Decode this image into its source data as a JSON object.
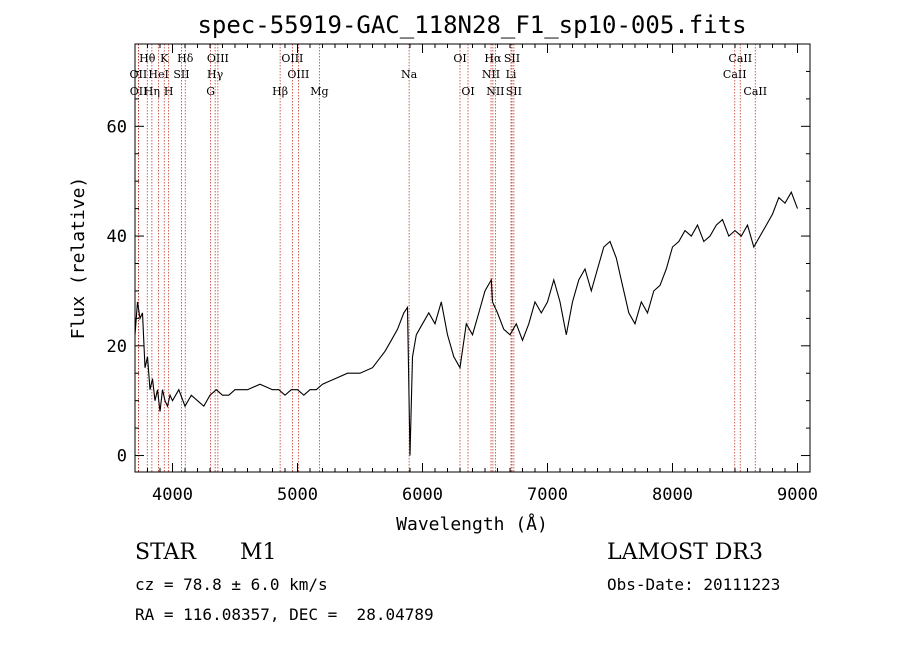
{
  "chart_data": {
    "type": "line",
    "title": "spec-55919-GAC_118N28_F1_sp10-005.fits",
    "xlabel": "Wavelength (Å)",
    "ylabel": "Flux (relative)",
    "xlim": [
      3700,
      9100
    ],
    "ylim": [
      -3,
      75
    ],
    "x_ticks": [
      4000,
      5000,
      6000,
      7000,
      8000,
      9000
    ],
    "y_ticks": [
      0,
      20,
      40,
      60
    ],
    "grid": false,
    "series": [
      {
        "name": "Flux",
        "x": [
          3700,
          3720,
          3740,
          3760,
          3780,
          3800,
          3820,
          3840,
          3860,
          3880,
          3900,
          3920,
          3940,
          3960,
          3980,
          4000,
          4050,
          4100,
          4150,
          4200,
          4250,
          4300,
          4350,
          4400,
          4450,
          4500,
          4600,
          4700,
          4800,
          4850,
          4900,
          4950,
          5000,
          5050,
          5100,
          5150,
          5200,
          5300,
          5400,
          5500,
          5600,
          5700,
          5750,
          5800,
          5850,
          5880,
          5900,
          5920,
          5950,
          6000,
          6050,
          6100,
          6150,
          6200,
          6250,
          6300,
          6350,
          6400,
          6450,
          6500,
          6550,
          6560,
          6580,
          6600,
          6650,
          6700,
          6750,
          6800,
          6850,
          6900,
          6950,
          7000,
          7050,
          7100,
          7150,
          7200,
          7250,
          7300,
          7350,
          7400,
          7450,
          7500,
          7550,
          7600,
          7650,
          7700,
          7750,
          7800,
          7850,
          7900,
          7950,
          8000,
          8050,
          8100,
          8150,
          8200,
          8250,
          8300,
          8350,
          8400,
          8450,
          8500,
          8550,
          8600,
          8650,
          8700,
          8750,
          8800,
          8850,
          8900,
          8950,
          9000
        ],
        "values": [
          22,
          28,
          25,
          26,
          16,
          18,
          12,
          14,
          10,
          12,
          8,
          12,
          10,
          9,
          11,
          10,
          12,
          9,
          11,
          10,
          9,
          11,
          12,
          11,
          11,
          12,
          12,
          13,
          12,
          12,
          11,
          12,
          12,
          11,
          12,
          12,
          13,
          14,
          15,
          15,
          16,
          19,
          21,
          23,
          26,
          27,
          0,
          18,
          22,
          24,
          26,
          24,
          28,
          22,
          18,
          16,
          24,
          22,
          26,
          30,
          32,
          28,
          27,
          26,
          23,
          22,
          24,
          21,
          24,
          28,
          26,
          28,
          32,
          28,
          22,
          28,
          32,
          34,
          30,
          34,
          38,
          39,
          36,
          31,
          26,
          24,
          28,
          26,
          30,
          31,
          34,
          38,
          39,
          41,
          40,
          42,
          39,
          40,
          42,
          43,
          40,
          41,
          40,
          42,
          38,
          40,
          42,
          44,
          47,
          46,
          48,
          45
        ]
      }
    ],
    "lines": [
      {
        "label": "Hθ",
        "wave": 3798,
        "row": 1
      },
      {
        "label": "OII",
        "wave": 3727,
        "row": 2
      },
      {
        "label": "OII",
        "wave": 3729,
        "row": 3
      },
      {
        "label": "K",
        "wave": 3934,
        "row": 1
      },
      {
        "label": "HeI",
        "wave": 3889,
        "row": 2
      },
      {
        "label": "Hη",
        "wave": 3835,
        "row": 3
      },
      {
        "label": "Hδ",
        "wave": 4102,
        "row": 1
      },
      {
        "label": "SII",
        "wave": 4072,
        "row": 2
      },
      {
        "label": "H",
        "wave": 3969,
        "row": 3
      },
      {
        "label": "OIII",
        "wave": 4363,
        "row": 1
      },
      {
        "label": "Hγ",
        "wave": 4341,
        "row": 2
      },
      {
        "label": "G",
        "wave": 4305,
        "row": 3
      },
      {
        "label": "OIII",
        "wave": 4959,
        "row": 1
      },
      {
        "label": "OIII",
        "wave": 5007,
        "row": 2
      },
      {
        "label": "Hβ",
        "wave": 4861,
        "row": 3
      },
      {
        "label": "Mg",
        "wave": 5175,
        "row": 3
      },
      {
        "label": "Na",
        "wave": 5893,
        "row": 2
      },
      {
        "label": "OI",
        "wave": 6300,
        "row": 1
      },
      {
        "label": "OI",
        "wave": 6364,
        "row": 3
      },
      {
        "label": "Hα",
        "wave": 6563,
        "row": 1
      },
      {
        "label": "NII",
        "wave": 6548,
        "row": 2
      },
      {
        "label": "NII",
        "wave": 6583,
        "row": 3
      },
      {
        "label": "SII",
        "wave": 6716,
        "row": 1
      },
      {
        "label": "Li",
        "wave": 6708,
        "row": 2
      },
      {
        "label": "SII",
        "wave": 6731,
        "row": 3
      },
      {
        "label": "CaII",
        "wave": 8542,
        "row": 1
      },
      {
        "label": "CaII",
        "wave": 8498,
        "row": 2
      },
      {
        "label": "CaII",
        "wave": 8662,
        "row": 3
      }
    ]
  },
  "info": {
    "object_class": "STAR",
    "subclass": "M1",
    "survey": "LAMOST DR3",
    "redshift": "cz = 78.8 ± 6.0 km/s",
    "obs_date": "Obs-Date: 20111223",
    "coords": "RA = 116.08357, DEC =  28.04789"
  },
  "colors": {
    "line_marker": "#c0392b",
    "spectrum": "#000000",
    "axis": "#000000"
  }
}
